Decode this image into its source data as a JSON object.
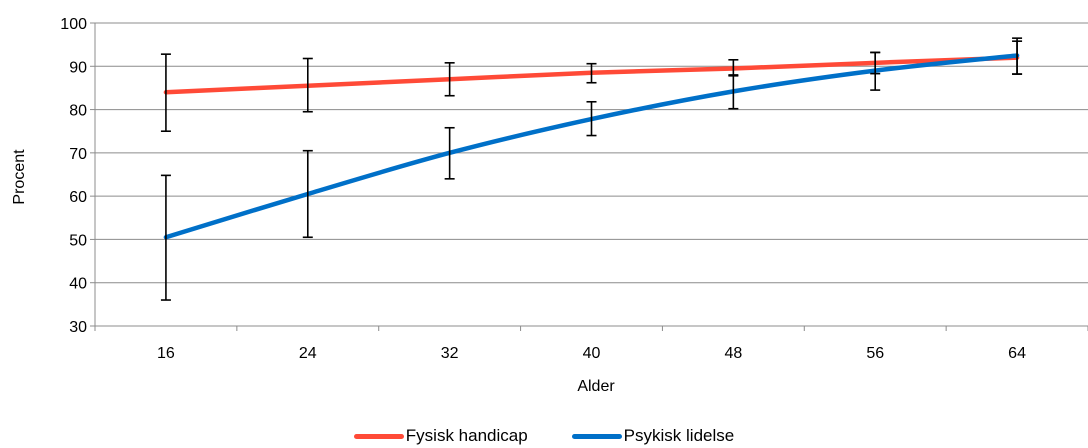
{
  "chart_data": {
    "type": "line",
    "xlabel": "Alder",
    "ylabel": "Procent",
    "categories": [
      "16",
      "24",
      "32",
      "40",
      "48",
      "56",
      "64"
    ],
    "ylim": [
      30,
      100
    ],
    "yticks": [
      30,
      40,
      50,
      60,
      70,
      80,
      90,
      100
    ],
    "grid": "horizontal",
    "legend_position": "bottom",
    "series": [
      {
        "name": "Fysisk handicap",
        "color": "#ff4a37",
        "values": [
          84,
          85.5,
          87,
          88.5,
          89.5,
          90.8,
          92
        ],
        "error_low": [
          75,
          79.5,
          83.2,
          86.2,
          87.8,
          88.3,
          88.2
        ],
        "error_high": [
          92.8,
          91.8,
          90.8,
          90.6,
          91.5,
          93.2,
          95.8
        ]
      },
      {
        "name": "Psykisk lidelse",
        "color": "#0070c8",
        "values": [
          50.5,
          60.5,
          70,
          77.8,
          84.2,
          89,
          92.5
        ],
        "error_low": [
          36,
          50.5,
          64,
          74,
          80.2,
          84.5,
          88.2
        ],
        "error_high": [
          64.8,
          70.5,
          75.8,
          81.8,
          88,
          93.2,
          96.5
        ]
      }
    ]
  }
}
